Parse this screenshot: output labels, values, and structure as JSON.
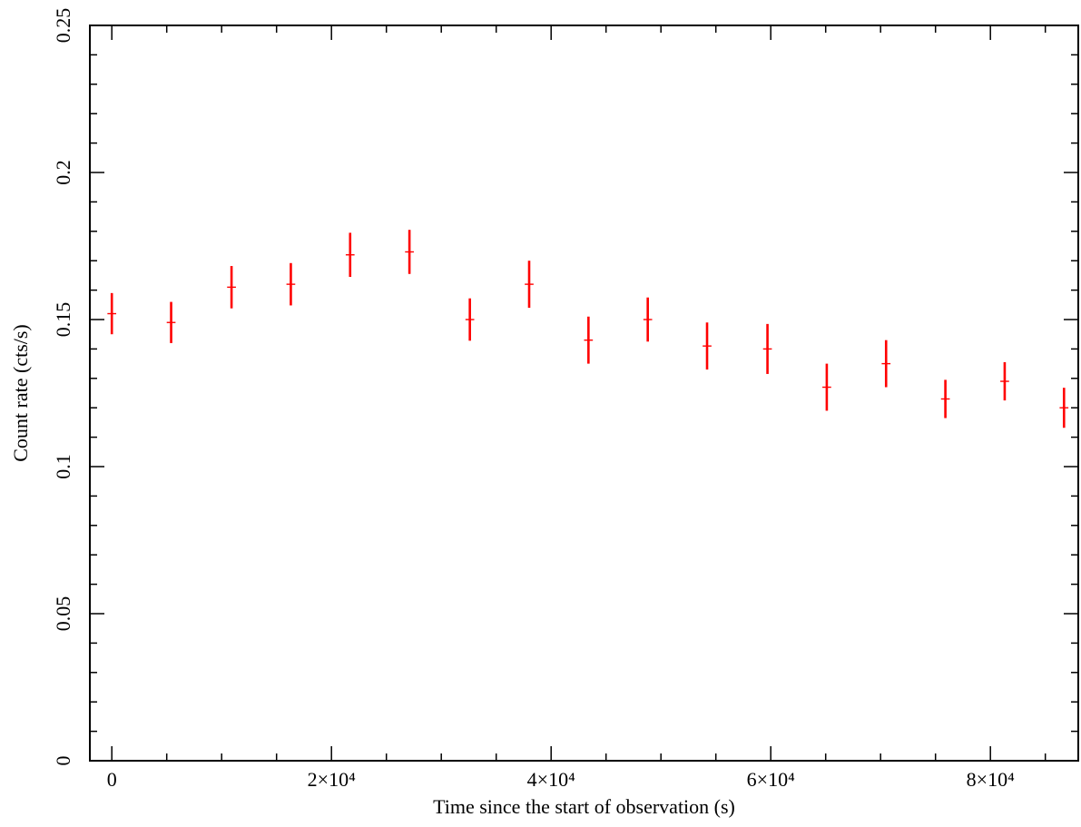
{
  "chart_data": {
    "type": "scatter",
    "title": "",
    "xlabel": "Time since the start of observation (s)",
    "ylabel": "Count rate (cts/s)",
    "xlim": [
      -2000,
      88000
    ],
    "ylim": [
      0,
      0.25
    ],
    "grid": false,
    "x_ticks": [
      {
        "value": 0,
        "label": "0"
      },
      {
        "value": 20000,
        "label": "2×10⁴"
      },
      {
        "value": 40000,
        "label": "4×10⁴"
      },
      {
        "value": 60000,
        "label": "6×10⁴"
      },
      {
        "value": 80000,
        "label": "8×10⁴"
      }
    ],
    "y_ticks": [
      {
        "value": 0,
        "label": "0"
      },
      {
        "value": 0.05,
        "label": "0.05"
      },
      {
        "value": 0.1,
        "label": "0.1"
      },
      {
        "value": 0.15,
        "label": "0.15"
      },
      {
        "value": 0.2,
        "label": "0.2"
      },
      {
        "value": 0.25,
        "label": "0.25"
      }
    ],
    "color": "#ff0000",
    "bin_halfwidth": 400,
    "points": [
      {
        "x": 0,
        "y": 0.152,
        "err": 0.007
      },
      {
        "x": 5400,
        "y": 0.149,
        "err": 0.007
      },
      {
        "x": 10900,
        "y": 0.161,
        "err": 0.0072
      },
      {
        "x": 16300,
        "y": 0.162,
        "err": 0.0072
      },
      {
        "x": 21700,
        "y": 0.172,
        "err": 0.0075
      },
      {
        "x": 27100,
        "y": 0.173,
        "err": 0.0075
      },
      {
        "x": 32600,
        "y": 0.15,
        "err": 0.0072
      },
      {
        "x": 38000,
        "y": 0.162,
        "err": 0.008
      },
      {
        "x": 43400,
        "y": 0.143,
        "err": 0.008
      },
      {
        "x": 48800,
        "y": 0.15,
        "err": 0.0075
      },
      {
        "x": 54200,
        "y": 0.141,
        "err": 0.008
      },
      {
        "x": 59700,
        "y": 0.14,
        "err": 0.0085
      },
      {
        "x": 65100,
        "y": 0.127,
        "err": 0.008
      },
      {
        "x": 70500,
        "y": 0.135,
        "err": 0.008
      },
      {
        "x": 75900,
        "y": 0.123,
        "err": 0.0065
      },
      {
        "x": 81300,
        "y": 0.129,
        "err": 0.0065
      },
      {
        "x": 86700,
        "y": 0.12,
        "err": 0.0068
      }
    ]
  }
}
